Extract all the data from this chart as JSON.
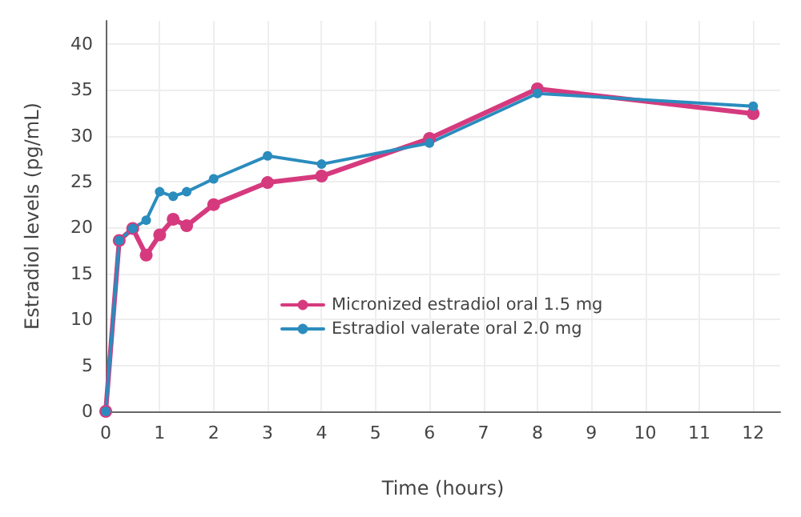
{
  "chart_data": {
    "type": "line",
    "xlabel": "Time (hours)",
    "ylabel": "Estradiol levels (pg/mL)",
    "xlim": [
      0,
      12.5
    ],
    "xticks": [
      0,
      1,
      2,
      3,
      4,
      5,
      6,
      7,
      8,
      9,
      10,
      11,
      12
    ],
    "ylim": [
      0,
      42.5
    ],
    "yticks": [
      0,
      5,
      10,
      15,
      20,
      25,
      30,
      35,
      40
    ],
    "series": [
      {
        "name": "Micronized estradiol oral 1.5 mg",
        "color": "#d63a7e",
        "x": [
          0,
          0.25,
          0.5,
          0.75,
          1,
          1.25,
          1.5,
          2,
          3,
          4,
          6,
          8,
          12
        ],
        "values": [
          0,
          18.6,
          19.9,
          17.0,
          19.2,
          20.9,
          20.2,
          22.5,
          24.9,
          25.6,
          29.7,
          35.1,
          32.4
        ]
      },
      {
        "name": "Estradiol valerate oral 2.0 mg",
        "color": "#2b8cbe",
        "x": [
          0,
          0.25,
          0.5,
          0.75,
          1,
          1.25,
          1.5,
          2,
          3,
          4,
          6,
          8,
          12
        ],
        "values": [
          0,
          18.6,
          19.9,
          20.8,
          23.9,
          23.4,
          23.9,
          25.3,
          27.8,
          26.9,
          29.2,
          34.6,
          33.2
        ]
      }
    ],
    "grid": true,
    "legend": "center",
    "marker": "circle",
    "line_style": "solid"
  }
}
